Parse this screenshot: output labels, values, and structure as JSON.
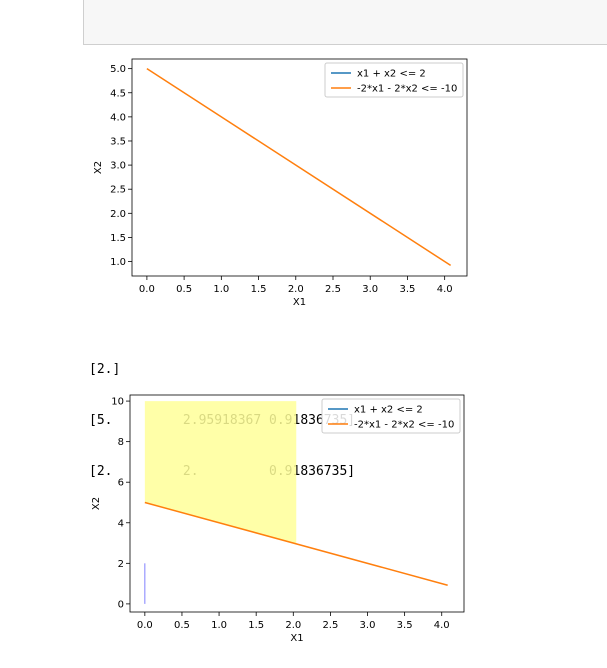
{
  "output_lines": [
    "[2.]",
    "[5.         2.95918367 0.91836735]",
    "[2.         2.         0.91836735]"
  ],
  "chart_data": [
    {
      "type": "line",
      "xlabel": "X1",
      "ylabel": "X2",
      "xlim": [
        -0.2,
        4.3
      ],
      "ylim": [
        0.7,
        5.2
      ],
      "xticks": [
        0.0,
        0.5,
        1.0,
        1.5,
        2.0,
        2.5,
        3.0,
        3.5,
        4.0
      ],
      "xtick_labels": [
        "0.0",
        "0.5",
        "1.0",
        "1.5",
        "2.0",
        "2.5",
        "3.0",
        "3.5",
        "4.0"
      ],
      "yticks": [
        1.0,
        1.5,
        2.0,
        2.5,
        3.0,
        3.5,
        4.0,
        4.5,
        5.0
      ],
      "ytick_labels": [
        "1.0",
        "1.5",
        "2.0",
        "2.5",
        "3.0",
        "3.5",
        "4.0",
        "4.5",
        "5.0"
      ],
      "legend_position": "top-right",
      "series": [
        {
          "name": "x1 + x2 <= 2",
          "color": "#1f77b4",
          "x": [],
          "y": []
        },
        {
          "name": "-2*x1 - 2*x2 <= -10",
          "color": "#ff7f0e",
          "x": [
            0.0,
            4.08
          ],
          "y": [
            5.0,
            0.92
          ]
        }
      ],
      "grid": false
    },
    {
      "type": "line",
      "xlabel": "X1",
      "ylabel": "X2",
      "xlim": [
        -0.2,
        4.3
      ],
      "ylim": [
        -0.4,
        10.3
      ],
      "xticks": [
        0.0,
        0.5,
        1.0,
        1.5,
        2.0,
        2.5,
        3.0,
        3.5,
        4.0
      ],
      "xtick_labels": [
        "0.0",
        "0.5",
        "1.0",
        "1.5",
        "2.0",
        "2.5",
        "3.0",
        "3.5",
        "4.0"
      ],
      "yticks": [
        0,
        2,
        4,
        6,
        8,
        10
      ],
      "ytick_labels": [
        "0",
        "2",
        "4",
        "6",
        "8",
        "10"
      ],
      "legend_position": "top-right",
      "series": [
        {
          "name": "x1 + x2 <= 2",
          "color": "#1f77b4",
          "x": [],
          "y": []
        },
        {
          "name": "-2*x1 - 2*x2 <= -10",
          "color": "#ff7f0e",
          "x": [
            0.0,
            4.08
          ],
          "y": [
            5.0,
            0.92
          ]
        }
      ],
      "fill_region": {
        "color": "#ffff99",
        "x": [
          0.0,
          2.04
        ],
        "y_lower": [
          5.0,
          2.96
        ],
        "y_upper": 10.0
      },
      "vertical_segment": {
        "color": "#8080ff",
        "x": 0.0,
        "y": [
          0.0,
          2.0
        ]
      },
      "grid": false
    }
  ]
}
